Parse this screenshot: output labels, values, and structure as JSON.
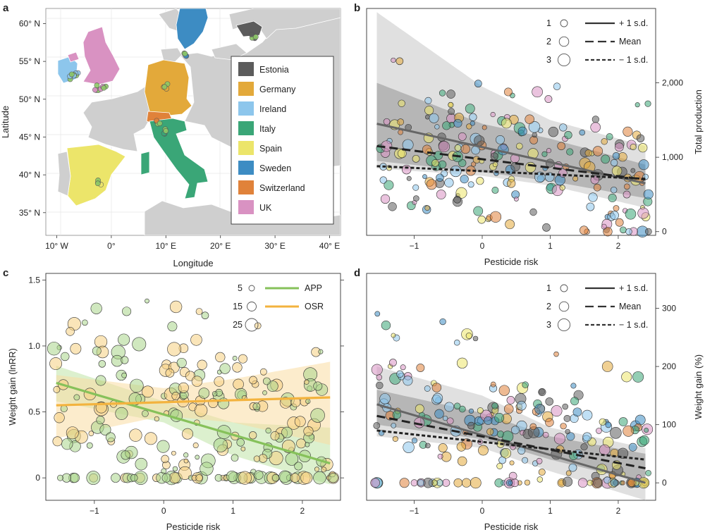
{
  "chart_data": [
    {
      "panel": "a",
      "type": "map",
      "xlabel": "Longitude",
      "ylabel": "Latitude",
      "xticks": [
        "10° W",
        "0°",
        "10° E",
        "20° E",
        "30° E",
        "40° E"
      ],
      "xtick_values": [
        -10,
        0,
        10,
        20,
        30,
        40
      ],
      "yticks": [
        "60° N",
        "55° N",
        "50° N",
        "45° N",
        "40° N",
        "35° N"
      ],
      "ytick_values": [
        60,
        55,
        50,
        45,
        40,
        35
      ],
      "xlim": [
        -12,
        42
      ],
      "ylim": [
        32,
        62
      ],
      "legend": [
        {
          "label": "Estonia",
          "color": "#5c5c5c"
        },
        {
          "label": "Germany",
          "color": "#e3a93a"
        },
        {
          "label": "Ireland",
          "color": "#8dc6ec"
        },
        {
          "label": "Italy",
          "color": "#3aa677"
        },
        {
          "label": "Spain",
          "color": "#ece56a"
        },
        {
          "label": "Sweden",
          "color": "#3d8cc3"
        },
        {
          "label": "Switzerland",
          "color": "#e0823a"
        },
        {
          "label": "UK",
          "color": "#d992c2"
        }
      ],
      "sites": [
        {
          "country": "UK",
          "lon": -2.5,
          "lat": 51.5
        },
        {
          "country": "UK",
          "lon": -1.5,
          "lat": 51.7
        },
        {
          "country": "Ireland",
          "lon": -6.4,
          "lat": 53.4
        },
        {
          "country": "Ireland",
          "lon": -7.2,
          "lat": 53.0
        },
        {
          "country": "Germany",
          "lon": 10.0,
          "lat": 51.7
        },
        {
          "country": "Switzerland",
          "lon": 8.5,
          "lat": 46.9
        },
        {
          "country": "Italy",
          "lon": 9.9,
          "lat": 45.8
        },
        {
          "country": "Spain",
          "lon": -2.1,
          "lat": 38.9
        },
        {
          "country": "Sweden",
          "lon": 13.5,
          "lat": 56.0
        },
        {
          "country": "Estonia",
          "lon": 26.0,
          "lat": 58.4
        }
      ]
    },
    {
      "panel": "b",
      "type": "scatter",
      "xlabel": "Pesticide risk",
      "ylabel": "Total production",
      "xticks": [
        -1,
        0,
        1,
        2
      ],
      "xlim": [
        -1.7,
        2.55
      ],
      "yticks": [
        "0",
        "1,000",
        "2,000"
      ],
      "ytick_values": [
        0,
        1000,
        2000
      ],
      "ylim": [
        -50,
        3000
      ],
      "size_legend": [
        "1",
        "2",
        "3"
      ],
      "line_legend": [
        "+ 1 s.d.",
        "Mean",
        "− 1 s.d."
      ],
      "lines": [
        {
          "name": "+ 1 s.d.",
          "x": [
            -1.55,
            2.4
          ],
          "y": [
            1450,
            650
          ]
        },
        {
          "name": "Mean",
          "x": [
            -1.55,
            2.4
          ],
          "y": [
            1150,
            700
          ]
        },
        {
          "name": "− 1 s.d.",
          "x": [
            -1.55,
            2.4
          ],
          "y": [
            880,
            710
          ]
        }
      ],
      "bands": [
        {
          "x": [
            -1.55,
            0,
            1,
            2.4
          ],
          "upper": [
            2950,
            1950,
            1500,
            1150
          ],
          "lower": [
            850,
            750,
            620,
            320
          ]
        },
        {
          "x": [
            -1.55,
            0,
            1,
            2.4
          ],
          "upper": [
            2000,
            1450,
            1250,
            900
          ],
          "lower": [
            950,
            800,
            680,
            450
          ]
        }
      ]
    },
    {
      "panel": "c",
      "type": "scatter",
      "xlabel": "Pesticide risk",
      "ylabel": "Weight gain (lnRR)",
      "xticks": [
        -1,
        0,
        1,
        2
      ],
      "xlim": [
        -1.7,
        2.55
      ],
      "yticks": [
        0,
        0.5,
        1.0,
        1.5
      ],
      "ytick_labels": [
        "0",
        "0.5",
        "1.0",
        "1.5"
      ],
      "ylim": [
        -0.17,
        1.55
      ],
      "size_legend": [
        "5",
        "15",
        "25"
      ],
      "series": [
        {
          "name": "APP",
          "color": "#86c15a",
          "line": {
            "x": [
              -1.55,
              2.4
            ],
            "y": [
              0.72,
              0.11
            ]
          }
        },
        {
          "name": "OSR",
          "color": "#f3b33e",
          "line": {
            "x": [
              -1.55,
              2.4
            ],
            "y": [
              0.55,
              0.61
            ]
          }
        }
      ],
      "bands": [
        {
          "name": "APP",
          "x": [
            -1.55,
            0,
            1,
            2.4
          ],
          "upper": [
            0.85,
            0.58,
            0.42,
            0.38
          ],
          "lower": [
            0.58,
            0.42,
            0.17,
            -0.05
          ]
        },
        {
          "name": "OSR",
          "x": [
            -1.55,
            0,
            1,
            2.4
          ],
          "upper": [
            0.78,
            0.68,
            0.75,
            0.88
          ],
          "lower": [
            0.3,
            0.47,
            0.42,
            0.25
          ]
        }
      ]
    },
    {
      "panel": "d",
      "type": "scatter",
      "xlabel": "Pesticide risk",
      "ylabel": "Weight gain (%)",
      "xticks": [
        -1,
        0,
        1,
        2
      ],
      "xlim": [
        -1.7,
        2.55
      ],
      "yticks": [
        "0",
        "100",
        "200",
        "300"
      ],
      "ytick_values": [
        0,
        100,
        200,
        300
      ],
      "ylim": [
        -30,
        360
      ],
      "size_legend": [
        "1",
        "2",
        "3"
      ],
      "line_legend": [
        "+ 1 s.d.",
        "Mean",
        "− 1 s.d."
      ],
      "lines": [
        {
          "name": "+ 1 s.d.",
          "x": [
            -1.55,
            2.4
          ],
          "y": [
            135,
            0
          ]
        },
        {
          "name": "Mean",
          "x": [
            -1.55,
            2.4
          ],
          "y": [
            115,
            25
          ]
        },
        {
          "name": "− 1 s.d.",
          "x": [
            -1.55,
            2.4
          ],
          "y": [
            90,
            40
          ]
        }
      ],
      "bands": [
        {
          "x": [
            -1.55,
            0,
            1,
            2.4
          ],
          "upper": [
            200,
            150,
            95,
            60
          ],
          "lower": [
            80,
            60,
            20,
            -30
          ]
        },
        {
          "x": [
            -1.55,
            0,
            1,
            2.4
          ],
          "upper": [
            160,
            120,
            80,
            50
          ],
          "lower": [
            100,
            75,
            40,
            0
          ]
        }
      ]
    }
  ]
}
